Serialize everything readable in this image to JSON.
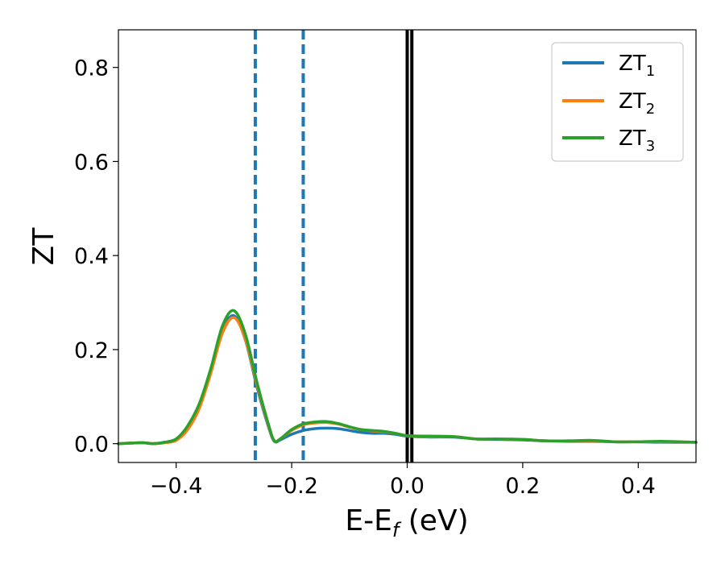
{
  "chart_data": {
    "type": "line",
    "xlabel": "E-E",
    "xlabel_sub": "f",
    "xlabel_unit": " (eV)",
    "ylabel": "ZT",
    "xlim": [
      -0.5,
      0.5
    ],
    "ylim": [
      -0.04,
      0.88
    ],
    "x_ticks": [
      -0.4,
      -0.2,
      0.0,
      0.2,
      0.4
    ],
    "x_tick_labels": [
      "−0.4",
      "−0.2",
      "0.0",
      "0.2",
      "0.4"
    ],
    "y_ticks": [
      0.0,
      0.2,
      0.4,
      0.6,
      0.8
    ],
    "y_tick_labels": [
      "0.0",
      "0.2",
      "0.4",
      "0.6",
      "0.8"
    ],
    "grid": false,
    "legend_position": "top-right",
    "series": [
      {
        "name": "ZT",
        "name_sub": "1",
        "color": "#1f77b4",
        "x": [
          -0.5,
          -0.46,
          -0.44,
          -0.42,
          -0.4,
          -0.38,
          -0.36,
          -0.34,
          -0.32,
          -0.3,
          -0.28,
          -0.26,
          -0.24,
          -0.23,
          -0.22,
          -0.2,
          -0.18,
          -0.16,
          -0.14,
          -0.12,
          -0.1,
          -0.08,
          -0.06,
          -0.04,
          -0.02,
          0.0,
          0.04,
          0.08,
          0.12,
          0.16,
          0.2,
          0.24,
          0.28,
          0.32,
          0.36,
          0.4,
          0.44,
          0.5
        ],
        "y": [
          0.0,
          0.002,
          0.0,
          0.003,
          0.01,
          0.035,
          0.08,
          0.155,
          0.24,
          0.272,
          0.22,
          0.12,
          0.035,
          0.005,
          0.008,
          0.02,
          0.028,
          0.032,
          0.033,
          0.032,
          0.028,
          0.024,
          0.022,
          0.022,
          0.02,
          0.016,
          0.014,
          0.014,
          0.01,
          0.009,
          0.008,
          0.006,
          0.005,
          0.005,
          0.004,
          0.004,
          0.003,
          0.003
        ]
      },
      {
        "name": "ZT",
        "name_sub": "2",
        "color": "#ff7f0e",
        "x": [
          -0.5,
          -0.46,
          -0.44,
          -0.42,
          -0.4,
          -0.38,
          -0.36,
          -0.34,
          -0.32,
          -0.3,
          -0.28,
          -0.26,
          -0.24,
          -0.23,
          -0.22,
          -0.2,
          -0.18,
          -0.16,
          -0.14,
          -0.12,
          -0.1,
          -0.08,
          -0.06,
          -0.04,
          -0.02,
          0.0,
          0.04,
          0.08,
          0.12,
          0.16,
          0.2,
          0.24,
          0.28,
          0.32,
          0.36,
          0.4,
          0.44,
          0.5
        ],
        "y": [
          0.0,
          0.002,
          0.0,
          0.002,
          0.007,
          0.03,
          0.075,
          0.15,
          0.235,
          0.268,
          0.222,
          0.125,
          0.038,
          0.006,
          0.01,
          0.028,
          0.04,
          0.044,
          0.045,
          0.042,
          0.035,
          0.03,
          0.027,
          0.025,
          0.022,
          0.017,
          0.015,
          0.015,
          0.01,
          0.01,
          0.009,
          0.006,
          0.006,
          0.006,
          0.004,
          0.004,
          0.004,
          0.003
        ]
      },
      {
        "name": "ZT",
        "name_sub": "3",
        "color": "#2ca02c",
        "x": [
          -0.5,
          -0.46,
          -0.44,
          -0.42,
          -0.4,
          -0.38,
          -0.36,
          -0.34,
          -0.32,
          -0.3,
          -0.28,
          -0.26,
          -0.24,
          -0.23,
          -0.22,
          -0.2,
          -0.18,
          -0.16,
          -0.14,
          -0.12,
          -0.1,
          -0.08,
          -0.06,
          -0.04,
          -0.02,
          0.0,
          0.04,
          0.08,
          0.12,
          0.16,
          0.2,
          0.24,
          0.28,
          0.32,
          0.36,
          0.4,
          0.44,
          0.5
        ],
        "y": [
          0.0,
          0.002,
          0.0,
          0.003,
          0.01,
          0.038,
          0.085,
          0.16,
          0.25,
          0.283,
          0.232,
          0.13,
          0.04,
          0.006,
          0.01,
          0.03,
          0.042,
          0.046,
          0.047,
          0.043,
          0.036,
          0.03,
          0.028,
          0.026,
          0.022,
          0.017,
          0.016,
          0.015,
          0.01,
          0.01,
          0.009,
          0.006,
          0.006,
          0.007,
          0.004,
          0.004,
          0.005,
          0.003
        ]
      }
    ],
    "vertical_lines": [
      {
        "x": -0.263,
        "style": "dashed",
        "color": "#1f77b4"
      },
      {
        "x": -0.18,
        "style": "dashed",
        "color": "#1f77b4"
      },
      {
        "x": 0.0,
        "style": "solid",
        "color": "#000000"
      },
      {
        "x": 0.008,
        "style": "solid",
        "color": "#000000"
      }
    ]
  }
}
